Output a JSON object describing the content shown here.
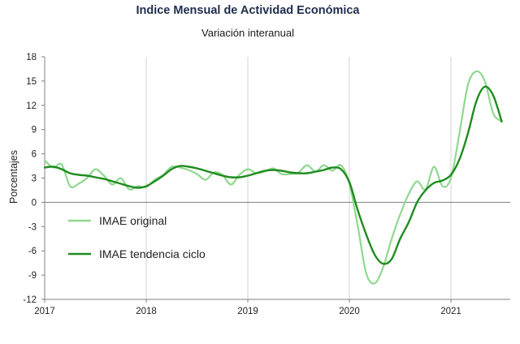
{
  "chart_data": {
    "type": "line",
    "title": "Indice Mensual de  Actividad Económica",
    "subtitle": "Variación interanual",
    "ylabel": "Porcentajes",
    "xlabel": "",
    "ylim": [
      -12,
      18
    ],
    "yticks": [
      "18",
      "15",
      "12",
      "9",
      "6",
      "3",
      "0",
      "-3",
      "-6",
      "-9",
      "-12"
    ],
    "xticks": [
      "2017",
      "2018",
      "2019",
      "2020",
      "2021"
    ],
    "grid": "vertical lines at each year",
    "legend_placement": "lower-left",
    "colors": {
      "original": "#8fd88f",
      "trend": "#1e8c1e",
      "axis": "#808080",
      "grid": "#d0d0d0"
    },
    "series": [
      {
        "name": "IMAE original",
        "x": [
          "2017-01",
          "2017-02",
          "2017-03",
          "2017-04",
          "2017-05",
          "2017-06",
          "2017-07",
          "2017-08",
          "2017-09",
          "2017-10",
          "2017-11",
          "2017-12",
          "2018-01",
          "2018-02",
          "2018-03",
          "2018-04",
          "2018-05",
          "2018-06",
          "2018-07",
          "2018-08",
          "2018-09",
          "2018-10",
          "2018-11",
          "2018-12",
          "2019-01",
          "2019-02",
          "2019-03",
          "2019-04",
          "2019-05",
          "2019-06",
          "2019-07",
          "2019-08",
          "2019-09",
          "2019-10",
          "2019-11",
          "2019-12",
          "2020-01",
          "2020-02",
          "2020-03",
          "2020-04",
          "2020-05",
          "2020-06",
          "2020-07",
          "2020-08",
          "2020-09",
          "2020-10",
          "2020-11",
          "2020-12",
          "2021-01",
          "2021-02",
          "2021-03",
          "2021-04",
          "2021-05",
          "2021-06",
          "2021-07"
        ],
        "values": [
          5.2,
          4.3,
          4.7,
          2.0,
          2.3,
          3.0,
          4.1,
          3.3,
          2.2,
          3.0,
          1.6,
          2.0,
          1.9,
          2.8,
          3.4,
          4.4,
          4.3,
          4.0,
          3.5,
          2.8,
          3.7,
          3.4,
          2.2,
          3.4,
          4.1,
          3.6,
          3.8,
          4.2,
          3.5,
          3.5,
          3.7,
          4.6,
          3.8,
          4.6,
          3.9,
          4.6,
          2.3,
          -3.0,
          -8.8,
          -10.0,
          -8.0,
          -4.5,
          -1.5,
          1.0,
          2.6,
          1.6,
          4.4,
          2.0,
          3.0,
          8.5,
          14.5,
          16.2,
          15.0,
          11.0,
          10.0
        ]
      },
      {
        "name": "IMAE tendencia ciclo",
        "x": [
          "2017-01",
          "2017-02",
          "2017-03",
          "2017-04",
          "2017-05",
          "2017-06",
          "2017-07",
          "2017-08",
          "2017-09",
          "2017-10",
          "2017-11",
          "2017-12",
          "2018-01",
          "2018-02",
          "2018-03",
          "2018-04",
          "2018-05",
          "2018-06",
          "2018-07",
          "2018-08",
          "2018-09",
          "2018-10",
          "2018-11",
          "2018-12",
          "2019-01",
          "2019-02",
          "2019-03",
          "2019-04",
          "2019-05",
          "2019-06",
          "2019-07",
          "2019-08",
          "2019-09",
          "2019-10",
          "2019-11",
          "2019-12",
          "2020-01",
          "2020-02",
          "2020-03",
          "2020-04",
          "2020-05",
          "2020-06",
          "2020-07",
          "2020-08",
          "2020-09",
          "2020-10",
          "2020-11",
          "2020-12",
          "2021-01",
          "2021-02",
          "2021-03",
          "2021-04",
          "2021-05",
          "2021-06",
          "2021-07"
        ],
        "values": [
          4.3,
          4.4,
          4.1,
          3.6,
          3.4,
          3.3,
          3.1,
          2.9,
          2.6,
          2.3,
          2.0,
          1.8,
          2.0,
          2.6,
          3.3,
          4.1,
          4.5,
          4.4,
          4.2,
          3.9,
          3.6,
          3.3,
          3.1,
          3.1,
          3.3,
          3.6,
          3.9,
          4.0,
          3.9,
          3.7,
          3.6,
          3.6,
          3.8,
          4.0,
          4.3,
          4.1,
          2.5,
          -1.0,
          -4.0,
          -6.5,
          -7.6,
          -7.0,
          -4.5,
          -2.5,
          0.0,
          1.5,
          2.4,
          2.7,
          3.4,
          5.3,
          8.5,
          12.5,
          14.3,
          13.2,
          10.0
        ]
      }
    ]
  }
}
